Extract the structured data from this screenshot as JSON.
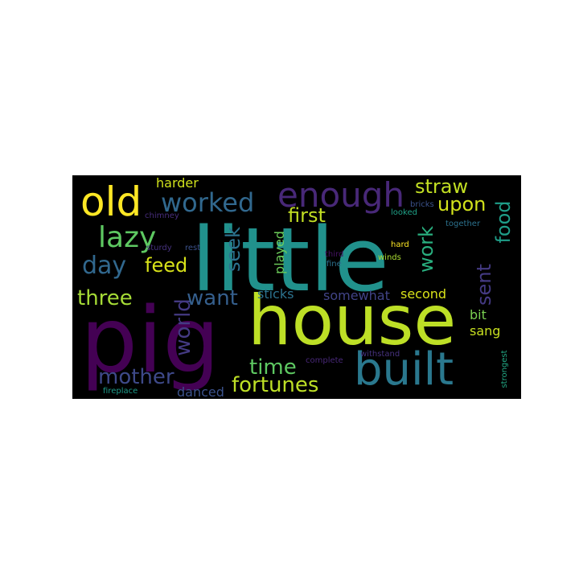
{
  "wordcloud": {
    "background": "#000000",
    "words": [
      {
        "text": "little",
        "color": "#21918c"
      },
      {
        "text": "pig",
        "color": "#440154"
      },
      {
        "text": "house",
        "color": "#bddf26"
      },
      {
        "text": "built",
        "color": "#2a788e"
      },
      {
        "text": "old",
        "color": "#fde725"
      },
      {
        "text": "enough",
        "color": "#482878"
      },
      {
        "text": "worked",
        "color": "#31688e"
      },
      {
        "text": "lazy",
        "color": "#5ec962"
      },
      {
        "text": "day",
        "color": "#31688e"
      },
      {
        "text": "three",
        "color": "#a5db36"
      },
      {
        "text": "feed",
        "color": "#d8e219"
      },
      {
        "text": "world",
        "color": "#443a83"
      },
      {
        "text": "mother",
        "color": "#3e4989"
      },
      {
        "text": "want",
        "color": "#355f8d"
      },
      {
        "text": "seek",
        "color": "#2c728e"
      },
      {
        "text": "first",
        "color": "#c2df23"
      },
      {
        "text": "straw",
        "color": "#c2df23"
      },
      {
        "text": "upon",
        "color": "#d2e21b"
      },
      {
        "text": "work",
        "color": "#29af7f"
      },
      {
        "text": "food",
        "color": "#1f9e89"
      },
      {
        "text": "sent",
        "color": "#443a83"
      },
      {
        "text": "time",
        "color": "#5ec962"
      },
      {
        "text": "fortunes",
        "color": "#bddf26"
      },
      {
        "text": "harder",
        "color": "#d0e11c"
      },
      {
        "text": "played",
        "color": "#6ccd5a"
      },
      {
        "text": "sticks",
        "color": "#2c728e"
      },
      {
        "text": "somewhat",
        "color": "#414487"
      },
      {
        "text": "second",
        "color": "#d8e219"
      },
      {
        "text": "bit",
        "color": "#7ad151"
      },
      {
        "text": "sang",
        "color": "#c8e020"
      },
      {
        "text": "danced",
        "color": "#3b528b"
      },
      {
        "text": "chimney",
        "color": "#472d7b"
      },
      {
        "text": "sturdy",
        "color": "#46327e"
      },
      {
        "text": "rest",
        "color": "#3b528b"
      },
      {
        "text": "third",
        "color": "#471365"
      },
      {
        "text": "fine",
        "color": "#2c728e"
      },
      {
        "text": "bricks",
        "color": "#3b528b"
      },
      {
        "text": "looked",
        "color": "#1fa187"
      },
      {
        "text": "together",
        "color": "#2c728e"
      },
      {
        "text": "hard",
        "color": "#fde725"
      },
      {
        "text": "winds",
        "color": "#aadc32"
      },
      {
        "text": "complete",
        "color": "#482878"
      },
      {
        "text": "withstand",
        "color": "#46327e"
      },
      {
        "text": "strongest",
        "color": "#22a884"
      },
      {
        "text": "fireplace",
        "color": "#1e9b8a"
      }
    ]
  }
}
